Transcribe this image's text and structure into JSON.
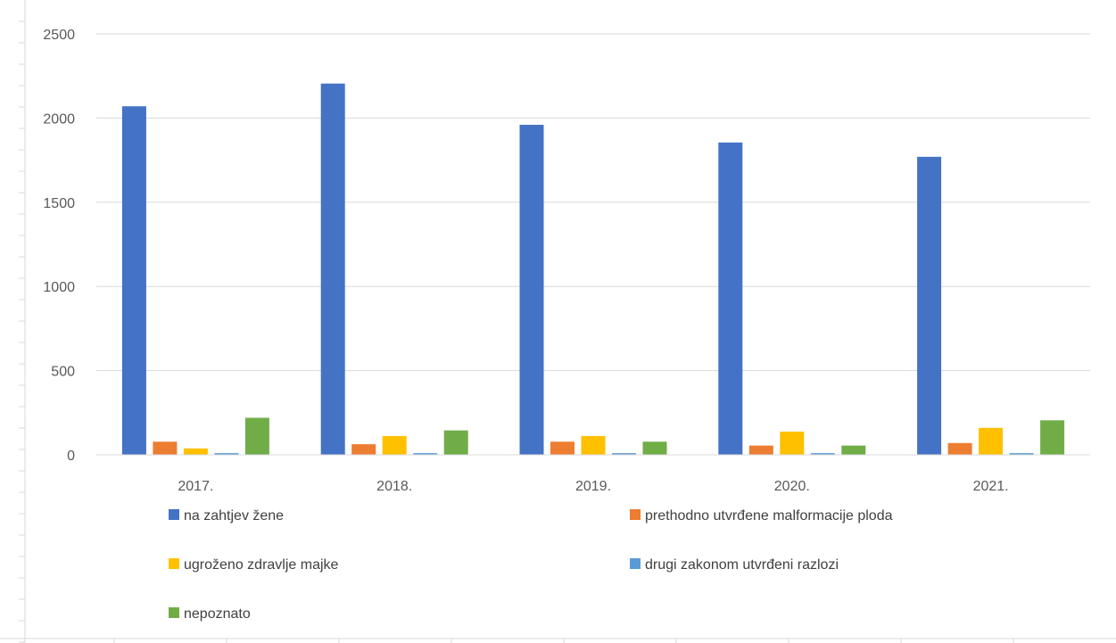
{
  "chart_data": {
    "type": "bar",
    "title": "",
    "xlabel": "",
    "ylabel": "",
    "categories": [
      "2017.",
      "2018.",
      "2019.",
      "2020.",
      "2021."
    ],
    "ylim": [
      0,
      2500
    ],
    "yticks": [
      0,
      500,
      1000,
      1500,
      2000,
      2500
    ],
    "grid": true,
    "legend_position": "bottom",
    "series": [
      {
        "name": "na zahtjev žene",
        "color": "#4472C4",
        "values": [
          2070,
          2205,
          1960,
          1855,
          1770
        ]
      },
      {
        "name": "prethodno utvrđene malformacije ploda",
        "color": "#ED7D31",
        "values": [
          78,
          63,
          78,
          55,
          70
        ]
      },
      {
        "name": "ugroženo zdravlje majke",
        "color": "#FFC000",
        "values": [
          38,
          112,
          112,
          138,
          160
        ]
      },
      {
        "name": "drugi zakonom utvrđeni razlozi",
        "color": "#5B9BD5",
        "values": [
          10,
          10,
          10,
          10,
          10
        ]
      },
      {
        "name": "nepoznato",
        "color": "#70AD47",
        "values": [
          220,
          145,
          78,
          55,
          205
        ]
      }
    ]
  }
}
